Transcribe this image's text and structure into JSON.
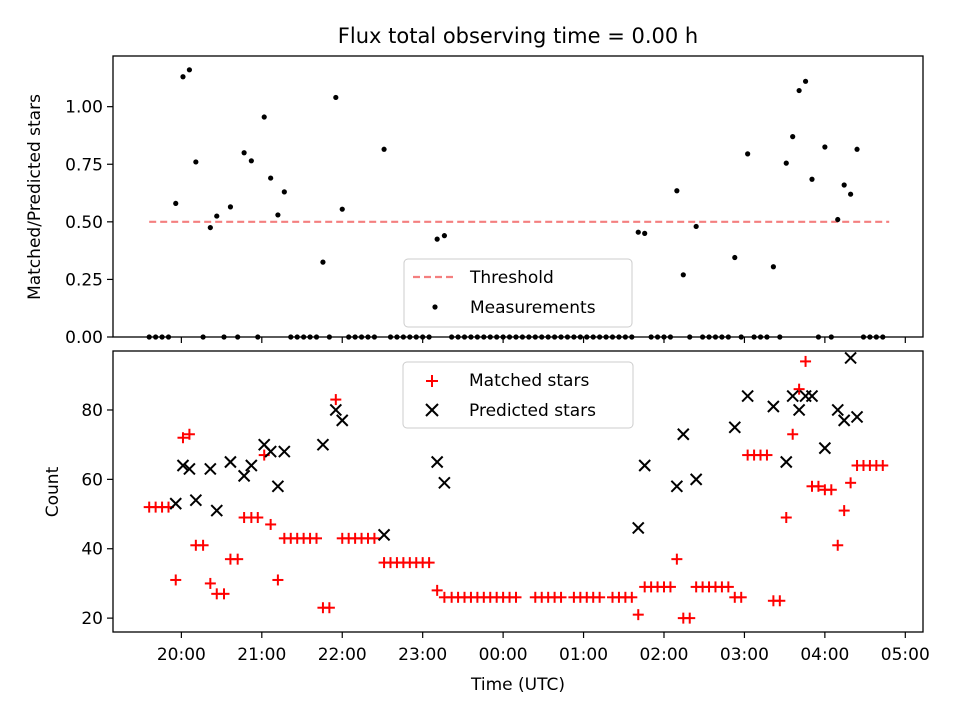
{
  "chart_data": [
    {
      "type": "scatter",
      "title": "Flux total observing time = 0.00 h",
      "xlabel": "",
      "ylabel": "Matched/Predicted stars",
      "xlim": [
        19.15,
        29.22
      ],
      "ylim": [
        0.0,
        1.22
      ],
      "yticks": [
        0.0,
        0.25,
        0.5,
        0.75,
        1.0
      ],
      "ytick_labels": [
        "0.00",
        "0.25",
        "0.50",
        "0.75",
        "1.00"
      ],
      "legend": {
        "placement": "lower center",
        "entries": [
          "Threshold",
          "Measurements"
        ]
      },
      "threshold": {
        "name": "Threshold",
        "x": [
          19.6,
          28.8
        ],
        "y": 0.5,
        "color": "#f47f7f",
        "style": "dashed"
      },
      "series": [
        {
          "name": "Measurements",
          "color": "#000000",
          "points": [
            [
              19.6,
              0
            ],
            [
              19.68,
              0
            ],
            [
              19.76,
              0
            ],
            [
              19.84,
              0
            ],
            [
              19.93,
              0.58
            ],
            [
              20.02,
              1.13
            ],
            [
              20.1,
              1.16
            ],
            [
              20.18,
              0.76
            ],
            [
              20.27,
              0
            ],
            [
              20.36,
              0.475
            ],
            [
              20.44,
              0.525
            ],
            [
              20.53,
              0
            ],
            [
              20.61,
              0.565
            ],
            [
              20.7,
              0
            ],
            [
              20.78,
              0.8
            ],
            [
              20.87,
              0.765
            ],
            [
              20.95,
              0
            ],
            [
              21.03,
              0.955
            ],
            [
              21.11,
              0.69
            ],
            [
              21.2,
              0.53
            ],
            [
              21.28,
              0.63
            ],
            [
              21.36,
              0
            ],
            [
              21.44,
              0
            ],
            [
              21.52,
              0
            ],
            [
              21.6,
              0
            ],
            [
              21.68,
              0
            ],
            [
              21.76,
              0.325
            ],
            [
              21.84,
              0
            ],
            [
              21.92,
              1.04
            ],
            [
              22.0,
              0.555
            ],
            [
              22.08,
              0
            ],
            [
              22.16,
              0
            ],
            [
              22.24,
              0
            ],
            [
              22.32,
              0
            ],
            [
              22.4,
              0
            ],
            [
              22.52,
              0.815
            ],
            [
              22.6,
              0
            ],
            [
              22.68,
              0
            ],
            [
              22.76,
              0
            ],
            [
              22.84,
              0
            ],
            [
              22.92,
              0
            ],
            [
              23.0,
              0
            ],
            [
              23.08,
              0
            ],
            [
              23.18,
              0.425
            ],
            [
              23.27,
              0.44
            ],
            [
              23.36,
              0
            ],
            [
              23.44,
              0
            ],
            [
              23.52,
              0
            ],
            [
              23.6,
              0
            ],
            [
              23.68,
              0
            ],
            [
              23.76,
              0
            ],
            [
              23.84,
              0
            ],
            [
              23.92,
              0
            ],
            [
              24.0,
              0
            ],
            [
              24.08,
              0
            ],
            [
              24.16,
              0
            ],
            [
              24.24,
              0
            ],
            [
              24.32,
              0
            ],
            [
              24.4,
              0
            ],
            [
              24.48,
              0
            ],
            [
              24.56,
              0
            ],
            [
              24.64,
              0
            ],
            [
              24.72,
              0
            ],
            [
              24.8,
              0
            ],
            [
              24.88,
              0
            ],
            [
              24.96,
              0
            ],
            [
              25.04,
              0
            ],
            [
              25.12,
              0
            ],
            [
              25.2,
              0
            ],
            [
              25.28,
              0
            ],
            [
              25.36,
              0
            ],
            [
              25.44,
              0
            ],
            [
              25.52,
              0
            ],
            [
              25.6,
              0
            ],
            [
              25.68,
              0.455
            ],
            [
              25.76,
              0.45
            ],
            [
              25.84,
              0
            ],
            [
              25.92,
              0
            ],
            [
              26.0,
              0
            ],
            [
              26.08,
              0
            ],
            [
              26.16,
              0.635
            ],
            [
              26.24,
              0.27
            ],
            [
              26.32,
              0
            ],
            [
              26.4,
              0.48
            ],
            [
              26.48,
              0
            ],
            [
              26.56,
              0
            ],
            [
              26.64,
              0
            ],
            [
              26.72,
              0
            ],
            [
              26.8,
              0
            ],
            [
              26.88,
              0.345
            ],
            [
              26.96,
              0
            ],
            [
              27.04,
              0.795
            ],
            [
              27.12,
              0
            ],
            [
              27.2,
              0
            ],
            [
              27.28,
              0
            ],
            [
              27.36,
              0.305
            ],
            [
              27.44,
              0
            ],
            [
              27.52,
              0.755
            ],
            [
              27.6,
              0.87
            ],
            [
              27.68,
              1.07
            ],
            [
              27.76,
              1.11
            ],
            [
              27.84,
              0.685
            ],
            [
              27.92,
              0
            ],
            [
              28.0,
              0.825
            ],
            [
              28.08,
              0
            ],
            [
              28.16,
              0.51
            ],
            [
              28.24,
              0.66
            ],
            [
              28.32,
              0.62
            ],
            [
              28.4,
              0.815
            ],
            [
              28.48,
              0
            ],
            [
              28.56,
              0
            ],
            [
              28.64,
              0
            ],
            [
              28.72,
              0
            ]
          ]
        }
      ]
    },
    {
      "type": "scatter",
      "title": "",
      "xlabel": "Time (UTC)",
      "ylabel": "Count",
      "xlim": [
        19.15,
        29.22
      ],
      "ylim": [
        16,
        97
      ],
      "xticks": [
        20,
        21,
        22,
        23,
        24,
        25,
        26,
        27,
        28,
        29
      ],
      "xtick_labels": [
        "20:00",
        "21:00",
        "22:00",
        "23:00",
        "00:00",
        "01:00",
        "02:00",
        "03:00",
        "04:00",
        "05:00"
      ],
      "yticks": [
        20,
        40,
        60,
        80
      ],
      "ytick_labels": [
        "20",
        "40",
        "60",
        "80"
      ],
      "legend": {
        "placement": "upper center",
        "entries": [
          "Matched stars",
          "Predicted stars"
        ]
      },
      "series": [
        {
          "name": "Matched stars",
          "marker": "plus",
          "color": "#ff0000",
          "points": [
            [
              19.6,
              52
            ],
            [
              19.68,
              52
            ],
            [
              19.76,
              52
            ],
            [
              19.84,
              52
            ],
            [
              19.93,
              31
            ],
            [
              20.02,
              72
            ],
            [
              20.1,
              73
            ],
            [
              20.18,
              41
            ],
            [
              20.27,
              41
            ],
            [
              20.36,
              30
            ],
            [
              20.44,
              27
            ],
            [
              20.53,
              27
            ],
            [
              20.61,
              37
            ],
            [
              20.7,
              37
            ],
            [
              20.78,
              49
            ],
            [
              20.87,
              49
            ],
            [
              20.95,
              49
            ],
            [
              21.03,
              67
            ],
            [
              21.11,
              47
            ],
            [
              21.2,
              31
            ],
            [
              21.28,
              43
            ],
            [
              21.36,
              43
            ],
            [
              21.44,
              43
            ],
            [
              21.52,
              43
            ],
            [
              21.6,
              43
            ],
            [
              21.68,
              43
            ],
            [
              21.76,
              23
            ],
            [
              21.84,
              23
            ],
            [
              21.92,
              83
            ],
            [
              22.0,
              43
            ],
            [
              22.08,
              43
            ],
            [
              22.16,
              43
            ],
            [
              22.24,
              43
            ],
            [
              22.32,
              43
            ],
            [
              22.4,
              43
            ],
            [
              22.52,
              36
            ],
            [
              22.6,
              36
            ],
            [
              22.68,
              36
            ],
            [
              22.76,
              36
            ],
            [
              22.84,
              36
            ],
            [
              22.92,
              36
            ],
            [
              23.0,
              36
            ],
            [
              23.08,
              36
            ],
            [
              23.18,
              28
            ],
            [
              23.27,
              26
            ],
            [
              23.36,
              26
            ],
            [
              23.44,
              26
            ],
            [
              23.52,
              26
            ],
            [
              23.6,
              26
            ],
            [
              23.68,
              26
            ],
            [
              23.76,
              26
            ],
            [
              23.84,
              26
            ],
            [
              23.92,
              26
            ],
            [
              24.0,
              26
            ],
            [
              24.08,
              26
            ],
            [
              24.16,
              26
            ],
            [
              24.4,
              26
            ],
            [
              24.48,
              26
            ],
            [
              24.56,
              26
            ],
            [
              24.64,
              26
            ],
            [
              24.72,
              26
            ],
            [
              24.88,
              26
            ],
            [
              24.96,
              26
            ],
            [
              25.04,
              26
            ],
            [
              25.12,
              26
            ],
            [
              25.2,
              26
            ],
            [
              25.36,
              26
            ],
            [
              25.44,
              26
            ],
            [
              25.52,
              26
            ],
            [
              25.6,
              26
            ],
            [
              25.68,
              21
            ],
            [
              25.76,
              29
            ],
            [
              25.84,
              29
            ],
            [
              25.92,
              29
            ],
            [
              26.0,
              29
            ],
            [
              26.08,
              29
            ],
            [
              26.16,
              37
            ],
            [
              26.24,
              20
            ],
            [
              26.32,
              20
            ],
            [
              26.4,
              29
            ],
            [
              26.48,
              29
            ],
            [
              26.56,
              29
            ],
            [
              26.64,
              29
            ],
            [
              26.72,
              29
            ],
            [
              26.8,
              29
            ],
            [
              26.88,
              26
            ],
            [
              26.96,
              26
            ],
            [
              27.04,
              67
            ],
            [
              27.12,
              67
            ],
            [
              27.2,
              67
            ],
            [
              27.28,
              67
            ],
            [
              27.36,
              25
            ],
            [
              27.44,
              25
            ],
            [
              27.52,
              49
            ],
            [
              27.6,
              73
            ],
            [
              27.68,
              86
            ],
            [
              27.76,
              94
            ],
            [
              27.84,
              58
            ],
            [
              27.92,
              58
            ],
            [
              28.0,
              57
            ],
            [
              28.08,
              57
            ],
            [
              28.16,
              41
            ],
            [
              28.24,
              51
            ],
            [
              28.32,
              59
            ],
            [
              28.4,
              64
            ],
            [
              28.48,
              64
            ],
            [
              28.56,
              64
            ],
            [
              28.64,
              64
            ],
            [
              28.72,
              64
            ]
          ]
        },
        {
          "name": "Predicted stars",
          "marker": "x",
          "color": "#000000",
          "points": [
            [
              19.93,
              53
            ],
            [
              20.02,
              64
            ],
            [
              20.1,
              63
            ],
            [
              20.18,
              54
            ],
            [
              20.36,
              63
            ],
            [
              20.44,
              51
            ],
            [
              20.61,
              65
            ],
            [
              20.78,
              61
            ],
            [
              20.87,
              64
            ],
            [
              21.03,
              70
            ],
            [
              21.11,
              68
            ],
            [
              21.2,
              58
            ],
            [
              21.28,
              68
            ],
            [
              21.76,
              70
            ],
            [
              21.92,
              80
            ],
            [
              22.0,
              77
            ],
            [
              22.52,
              44
            ],
            [
              23.18,
              65
            ],
            [
              23.27,
              59
            ],
            [
              25.68,
              46
            ],
            [
              25.76,
              64
            ],
            [
              26.16,
              58
            ],
            [
              26.24,
              73
            ],
            [
              26.4,
              60
            ],
            [
              26.88,
              75
            ],
            [
              27.04,
              84
            ],
            [
              27.36,
              81
            ],
            [
              27.52,
              65
            ],
            [
              27.6,
              84
            ],
            [
              27.68,
              80
            ],
            [
              27.76,
              84
            ],
            [
              27.84,
              84
            ],
            [
              28.0,
              69
            ],
            [
              28.16,
              80
            ],
            [
              28.24,
              77
            ],
            [
              28.32,
              95
            ],
            [
              28.4,
              78
            ]
          ]
        }
      ]
    }
  ]
}
